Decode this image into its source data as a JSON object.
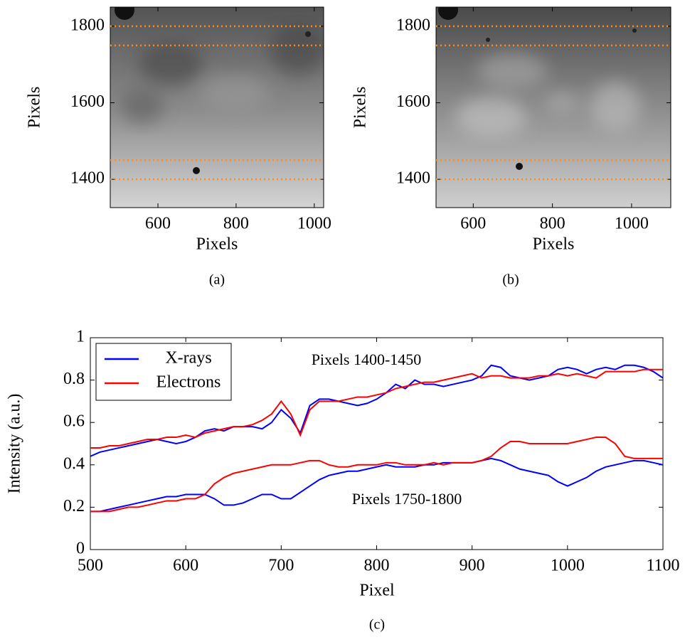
{
  "chart_data": [
    {
      "type": "image",
      "caption": "(a)",
      "xlabel": "Pixels",
      "ylabel": "Pixels",
      "xlim": [
        478,
        1024
      ],
      "ylim": [
        1326,
        1850
      ],
      "xticks": [
        600,
        800,
        1000
      ],
      "yticks": [
        1400,
        1600,
        1800
      ],
      "hlines": [
        1400,
        1450,
        1750,
        1800
      ],
      "hline_color": "#ff8c1a"
    },
    {
      "type": "image",
      "caption": "(b)",
      "xlabel": "Pixels",
      "ylabel": "Pixels",
      "xlim": [
        506,
        1099
      ],
      "ylim": [
        1326,
        1850
      ],
      "xticks": [
        600,
        800,
        1000
      ],
      "yticks": [
        1400,
        1600,
        1800
      ],
      "hlines": [
        1400,
        1450,
        1750,
        1800
      ],
      "hline_color": "#ff8c1a"
    },
    {
      "type": "line",
      "caption": "(c)",
      "xlabel": "Pixel",
      "ylabel": "Intensity (a.u.)",
      "xlim": [
        500,
        1100
      ],
      "ylim": [
        0,
        1
      ],
      "xticks": [
        500,
        600,
        700,
        800,
        900,
        1000,
        1100
      ],
      "yticks": [
        0,
        0.2,
        0.4,
        0.6,
        0.8,
        1
      ],
      "legend": "upper left",
      "annotations": [
        "Pixels 1400-1450",
        "Pixels 1750-1800"
      ],
      "x": [
        500,
        510,
        520,
        530,
        540,
        550,
        560,
        570,
        580,
        590,
        600,
        610,
        620,
        630,
        640,
        650,
        660,
        670,
        680,
        690,
        700,
        710,
        720,
        730,
        740,
        750,
        760,
        770,
        780,
        790,
        800,
        810,
        820,
        830,
        840,
        850,
        860,
        870,
        880,
        890,
        900,
        910,
        920,
        930,
        940,
        950,
        960,
        970,
        980,
        990,
        1000,
        1010,
        1020,
        1030,
        1040,
        1050,
        1060,
        1070,
        1080,
        1090,
        1100
      ],
      "series": [
        {
          "name": "X-rays",
          "color": "#0000ff",
          "values": [
            0.44,
            0.46,
            0.47,
            0.48,
            0.49,
            0.5,
            0.51,
            0.52,
            0.51,
            0.5,
            0.51,
            0.53,
            0.56,
            0.57,
            0.56,
            0.58,
            0.58,
            0.58,
            0.57,
            0.6,
            0.66,
            0.62,
            0.55,
            0.68,
            0.71,
            0.71,
            0.7,
            0.69,
            0.68,
            0.69,
            0.71,
            0.74,
            0.78,
            0.76,
            0.8,
            0.78,
            0.78,
            0.77,
            0.78,
            0.79,
            0.8,
            0.82,
            0.87,
            0.86,
            0.82,
            0.81,
            0.8,
            0.81,
            0.82,
            0.85,
            0.86,
            0.85,
            0.83,
            0.85,
            0.86,
            0.85,
            0.87,
            0.87,
            0.86,
            0.84,
            0.81
          ]
        },
        {
          "name": "Electrons",
          "color": "#ff0000",
          "values": [
            0.48,
            0.48,
            0.49,
            0.49,
            0.5,
            0.51,
            0.52,
            0.52,
            0.53,
            0.53,
            0.54,
            0.53,
            0.55,
            0.56,
            0.57,
            0.58,
            0.58,
            0.59,
            0.61,
            0.64,
            0.7,
            0.64,
            0.54,
            0.66,
            0.7,
            0.7,
            0.7,
            0.71,
            0.72,
            0.72,
            0.73,
            0.74,
            0.76,
            0.77,
            0.78,
            0.79,
            0.79,
            0.8,
            0.81,
            0.82,
            0.83,
            0.81,
            0.82,
            0.82,
            0.81,
            0.81,
            0.81,
            0.82,
            0.82,
            0.83,
            0.82,
            0.83,
            0.82,
            0.81,
            0.84,
            0.84,
            0.84,
            0.84,
            0.85,
            0.85,
            0.85
          ]
        },
        {
          "name": "X-rays",
          "color": "#0000ff",
          "values": [
            0.18,
            0.18,
            0.19,
            0.2,
            0.21,
            0.22,
            0.23,
            0.24,
            0.25,
            0.25,
            0.26,
            0.26,
            0.26,
            0.24,
            0.21,
            0.21,
            0.22,
            0.24,
            0.26,
            0.26,
            0.24,
            0.24,
            0.27,
            0.3,
            0.33,
            0.35,
            0.36,
            0.37,
            0.37,
            0.38,
            0.39,
            0.4,
            0.39,
            0.39,
            0.39,
            0.4,
            0.4,
            0.41,
            0.41,
            0.41,
            0.41,
            0.42,
            0.43,
            0.42,
            0.4,
            0.38,
            0.37,
            0.36,
            0.35,
            0.32,
            0.3,
            0.32,
            0.34,
            0.37,
            0.39,
            0.4,
            0.41,
            0.42,
            0.42,
            0.41,
            0.4
          ]
        },
        {
          "name": "Electrons",
          "color": "#ff0000",
          "values": [
            0.18,
            0.18,
            0.18,
            0.19,
            0.2,
            0.2,
            0.21,
            0.22,
            0.23,
            0.23,
            0.24,
            0.24,
            0.26,
            0.31,
            0.34,
            0.36,
            0.37,
            0.38,
            0.39,
            0.4,
            0.4,
            0.4,
            0.41,
            0.42,
            0.42,
            0.4,
            0.39,
            0.39,
            0.4,
            0.4,
            0.4,
            0.41,
            0.41,
            0.4,
            0.4,
            0.4,
            0.41,
            0.4,
            0.41,
            0.41,
            0.41,
            0.42,
            0.44,
            0.48,
            0.51,
            0.51,
            0.5,
            0.5,
            0.5,
            0.5,
            0.5,
            0.51,
            0.52,
            0.53,
            0.53,
            0.5,
            0.44,
            0.43,
            0.43,
            0.43,
            0.43
          ]
        }
      ]
    }
  ]
}
